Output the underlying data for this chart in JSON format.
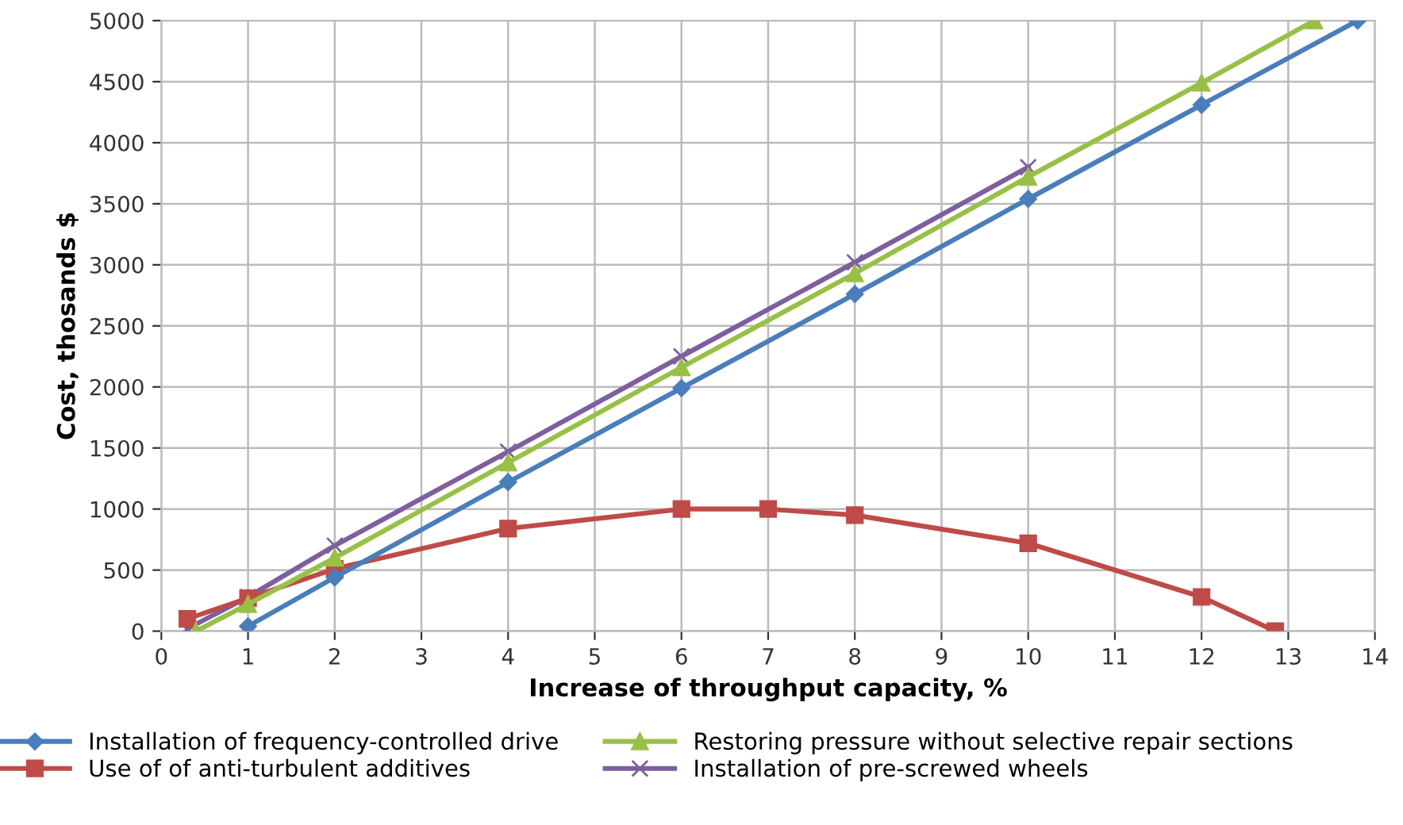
{
  "chart_data": {
    "type": "line",
    "xlabel": "Increase of throughput capacity, %",
    "ylabel": "Cost, thosands $",
    "xlim": [
      0,
      14
    ],
    "xticks": [
      0,
      1,
      2,
      3,
      4,
      5,
      6,
      7,
      8,
      9,
      10,
      11,
      12,
      13,
      14
    ],
    "ylim": [
      0,
      5000
    ],
    "yticks": [
      0,
      500,
      1000,
      1500,
      2000,
      2500,
      3000,
      3500,
      4000,
      4500,
      5000
    ],
    "grid": true,
    "legend": "bottom",
    "series": [
      {
        "name": "Installation of frequency-controlled drive",
        "color": "#4a7ebb",
        "marker": "diamond",
        "x": [
          1,
          2,
          4,
          6,
          8,
          10,
          12,
          13.8
        ],
        "values": [
          40,
          440,
          1220,
          1990,
          2760,
          3540,
          4310,
          5000
        ]
      },
      {
        "name": "Restoring pressure without selective repair sections",
        "color": "#98c047",
        "marker": "triangle",
        "x": [
          0.4,
          1,
          2,
          4,
          6,
          8,
          10,
          12,
          13.3
        ],
        "values": [
          0,
          220,
          600,
          1380,
          2160,
          2930,
          3720,
          4490,
          5000
        ]
      },
      {
        "name": "Use of of anti-turbulent additives",
        "color": "#be4b48",
        "marker": "square",
        "x": [
          0.3,
          1,
          2,
          4,
          6,
          7,
          8,
          10,
          12,
          12.85
        ],
        "values": [
          100,
          270,
          510,
          840,
          1000,
          1000,
          950,
          720,
          280,
          0
        ]
      },
      {
        "name": "Installation of pre-screwed wheels",
        "color": "#7d5fa0",
        "marker": "cross",
        "x": [
          0.3,
          1,
          2,
          4,
          6,
          8,
          10
        ],
        "values": [
          20,
          280,
          700,
          1470,
          2250,
          3020,
          3800
        ]
      }
    ]
  }
}
